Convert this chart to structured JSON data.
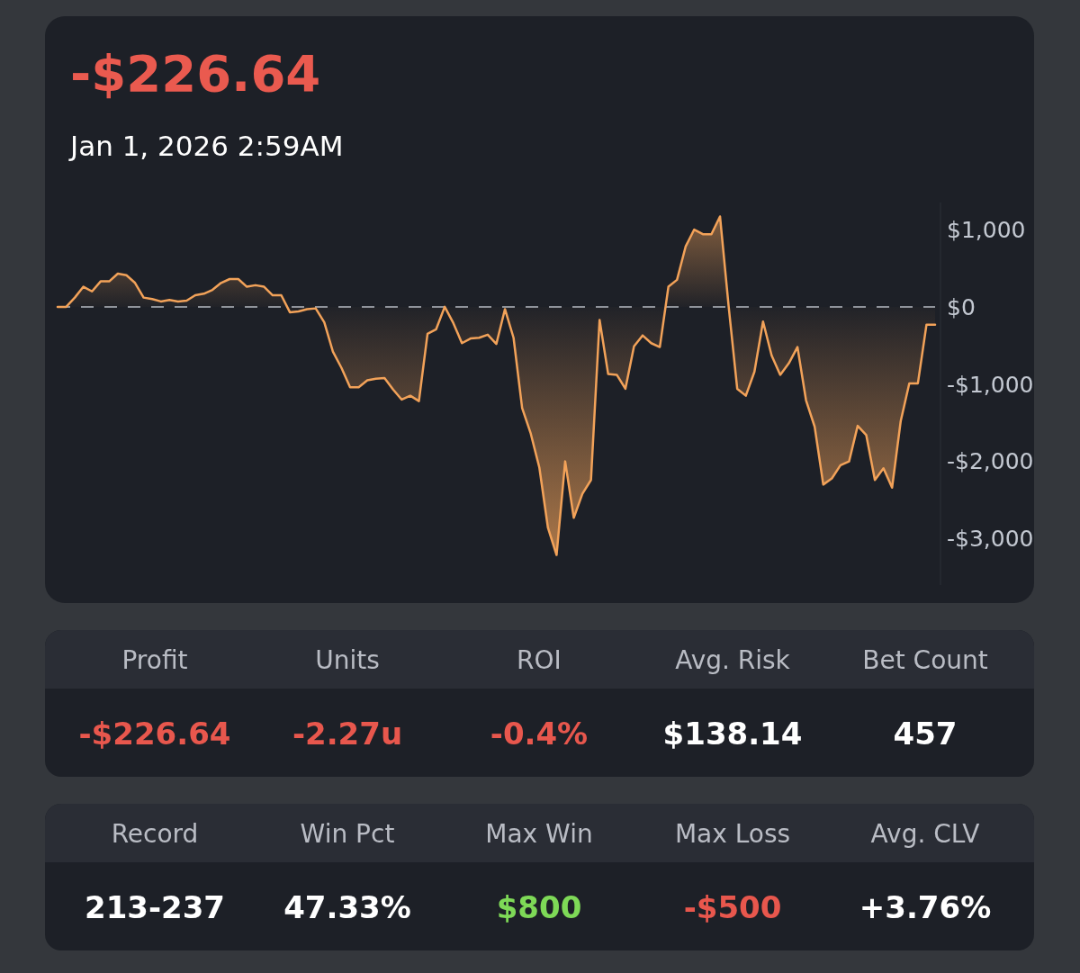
{
  "chart_data": [
    {
      "type": "area",
      "title": "-$226.64",
      "subtitle": "Jan 1, 2026 2:59AM",
      "tick_labels": "y",
      "categories": [
        null,
        null,
        null,
        null,
        null,
        null,
        null,
        null,
        null,
        null,
        null,
        null,
        null,
        null,
        null,
        null,
        null,
        null,
        null,
        null,
        null,
        null,
        null,
        null,
        null,
        null,
        null,
        null,
        null,
        null,
        null,
        null,
        null,
        null,
        null,
        null,
        null,
        null,
        null,
        null,
        null,
        null,
        null,
        null,
        null,
        null,
        null,
        null,
        null,
        null,
        null,
        null,
        null,
        null,
        null,
        null,
        null,
        null,
        null,
        null,
        null,
        null,
        null,
        null,
        null,
        null,
        null,
        null,
        null,
        null,
        null,
        null,
        null,
        null,
        null,
        null,
        null,
        null,
        null,
        null,
        null,
        null,
        null,
        null,
        null,
        null,
        null,
        null,
        null,
        null,
        null,
        null,
        null,
        null,
        null,
        null,
        null,
        null,
        null,
        null,
        null,
        null,
        null
      ],
      "series": [
        {
          "color": "#f2a259",
          "values": [
            0,
            0,
            120,
            260,
            200,
            330,
            330,
            430,
            410,
            310,
            120,
            100,
            70,
            90,
            70,
            80,
            150,
            170,
            220,
            310,
            360,
            360,
            260,
            280,
            260,
            150,
            150,
            -70,
            -60,
            -30,
            -20,
            -200,
            -580,
            -790,
            -1040,
            -1040,
            -950,
            -930,
            -920,
            -1070,
            -1200,
            -1150,
            -1220,
            -350,
            -290,
            0,
            -210,
            -470,
            -410,
            -400,
            -360,
            -480,
            -30,
            -400,
            -1310,
            -1640,
            -2080,
            -2860,
            -3210,
            -2000,
            -2730,
            -2420,
            -2240,
            -170,
            -870,
            -880,
            -1060,
            -510,
            -370,
            -470,
            -520,
            260,
            350,
            780,
            1000,
            940,
            940,
            1170,
            10,
            -1060,
            -1150,
            -840,
            -190,
            -630,
            -880,
            -730,
            -520,
            -1210,
            -1550,
            -2300,
            -2220,
            -2050,
            -2000,
            -1540,
            -1660,
            -2240,
            -2090,
            -2340,
            -1480,
            -990,
            -990,
            -230,
            -230
          ]
        }
      ],
      "ylim": [
        -3600,
        1350
      ],
      "yticks": [
        {
          "value": -3000,
          "label": "-$3,000"
        },
        {
          "value": -2000,
          "label": "-$2,000"
        },
        {
          "value": -1000,
          "label": "-$1,000"
        },
        {
          "value": 0,
          "label": "$0"
        },
        {
          "value": 1000,
          "label": "$1,000"
        }
      ],
      "ref_lines": [
        {
          "axis": "y",
          "value": 0,
          "color": "#b4b9c2",
          "line_style": "dashed"
        }
      ]
    },
    {
      "type": "other",
      "categories": [
        "Profit",
        "Units",
        "ROI",
        "Avg. Risk",
        "Bet Count"
      ],
      "cell_labels": [
        [
          "-$226.64",
          "-2.27u",
          "-0.4%",
          "$138.14",
          "457"
        ]
      ]
    },
    {
      "type": "other",
      "categories": [
        "Record",
        "Win Pct",
        "Max Win",
        "Max Loss",
        "Avg. CLV"
      ],
      "cell_labels": [
        [
          "213-237",
          "47.33%",
          "$800",
          "-$500",
          "+3.76%"
        ]
      ]
    }
  ]
}
